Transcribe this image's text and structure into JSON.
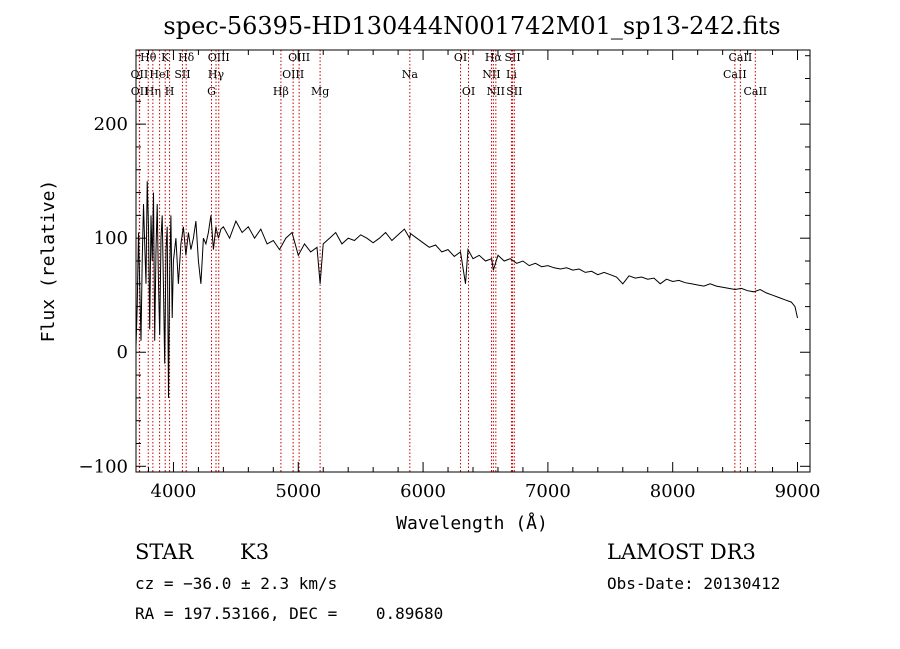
{
  "chart_data": {
    "type": "line",
    "title": "spec-56395-HD130444N001742M01_sp13-242.fits",
    "xlabel": "Wavelength (Å)",
    "ylabel": "Flux (relative)",
    "xlim": [
      3700,
      9100
    ],
    "ylim": [
      -105,
      265
    ],
    "x_ticks": [
      4000,
      5000,
      6000,
      7000,
      8000,
      9000
    ],
    "x_tick_labels": [
      "4000",
      "5000",
      "6000",
      "7000",
      "8000",
      "9000"
    ],
    "y_ticks": [
      -100,
      0,
      100,
      200
    ],
    "y_tick_labels": [
      "−100",
      "0",
      "100",
      "200"
    ],
    "grid": false,
    "series": [
      {
        "name": "flux",
        "color": "#000000",
        "x": [
          3700,
          3710,
          3720,
          3730,
          3740,
          3750,
          3760,
          3770,
          3780,
          3790,
          3800,
          3810,
          3820,
          3830,
          3840,
          3850,
          3860,
          3870,
          3880,
          3890,
          3900,
          3910,
          3920,
          3930,
          3940,
          3950,
          3960,
          3970,
          3980,
          3990,
          4000,
          4020,
          4040,
          4060,
          4080,
          4100,
          4120,
          4140,
          4160,
          4180,
          4200,
          4220,
          4240,
          4260,
          4280,
          4300,
          4320,
          4340,
          4360,
          4380,
          4400,
          4450,
          4500,
          4550,
          4600,
          4650,
          4700,
          4750,
          4800,
          4850,
          4900,
          4950,
          5000,
          5050,
          5100,
          5150,
          5175,
          5200,
          5250,
          5300,
          5350,
          5400,
          5450,
          5500,
          5550,
          5600,
          5650,
          5700,
          5750,
          5800,
          5850,
          5893,
          5900,
          5950,
          6000,
          6050,
          6100,
          6150,
          6200,
          6250,
          6300,
          6340,
          6360,
          6400,
          6450,
          6500,
          6550,
          6563,
          6600,
          6650,
          6700,
          6750,
          6800,
          6850,
          6900,
          6950,
          7000,
          7050,
          7100,
          7150,
          7200,
          7250,
          7300,
          7350,
          7400,
          7450,
          7500,
          7550,
          7600,
          7650,
          7700,
          7750,
          7800,
          7850,
          7900,
          7950,
          8000,
          8050,
          8100,
          8150,
          8200,
          8250,
          8300,
          8350,
          8400,
          8450,
          8500,
          8550,
          8600,
          8650,
          8700,
          8750,
          8800,
          8850,
          8900,
          8950,
          8980,
          9000
        ],
        "values": [
          5,
          40,
          105,
          60,
          10,
          80,
          130,
          95,
          60,
          150,
          110,
          20,
          120,
          80,
          140,
          10,
          90,
          130,
          60,
          15,
          100,
          120,
          55,
          -10,
          90,
          110,
          -40,
          70,
          120,
          30,
          80,
          100,
          60,
          95,
          110,
          85,
          105,
          90,
          100,
          115,
          80,
          60,
          100,
          95,
          105,
          120,
          90,
          110,
          100,
          108,
          110,
          100,
          115,
          105,
          110,
          100,
          108,
          95,
          98,
          90,
          100,
          105,
          85,
          95,
          88,
          92,
          60,
          95,
          100,
          105,
          95,
          100,
          98,
          103,
          100,
          96,
          100,
          105,
          98,
          103,
          108,
          100,
          104,
          100,
          96,
          92,
          94,
          88,
          90,
          84,
          88,
          60,
          90,
          82,
          85,
          80,
          82,
          72,
          85,
          80,
          82,
          78,
          80,
          76,
          78,
          75,
          76,
          74,
          73,
          74,
          72,
          73,
          70,
          71,
          68,
          70,
          68,
          66,
          60,
          67,
          65,
          66,
          64,
          65,
          60,
          64,
          62,
          63,
          61,
          60,
          59,
          58,
          60,
          58,
          57,
          56,
          55,
          56,
          54,
          53,
          55,
          52,
          50,
          48,
          46,
          44,
          40,
          30
        ]
      }
    ],
    "line_annotations": [
      {
        "label": "OII",
        "wavelength": 3727,
        "row": 2
      },
      {
        "label": "OII",
        "wavelength": 3729,
        "row": 3
      },
      {
        "label": "Hθ",
        "wavelength": 3798,
        "row": 1
      },
      {
        "label": "Hη",
        "wavelength": 3835,
        "row": 3
      },
      {
        "label": "HeI",
        "wavelength": 3889,
        "row": 2
      },
      {
        "label": "K",
        "wavelength": 3934,
        "row": 1
      },
      {
        "label": "H",
        "wavelength": 3969,
        "row": 3
      },
      {
        "label": "SII",
        "wavelength": 4072,
        "row": 2
      },
      {
        "label": "Hδ",
        "wavelength": 4102,
        "row": 1
      },
      {
        "label": "G",
        "wavelength": 4305,
        "row": 3
      },
      {
        "label": "Hγ",
        "wavelength": 4341,
        "row": 2
      },
      {
        "label": "OIII",
        "wavelength": 4363,
        "row": 1
      },
      {
        "label": "Hβ",
        "wavelength": 4861,
        "row": 3
      },
      {
        "label": "OIII",
        "wavelength": 4959,
        "row": 2
      },
      {
        "label": "OIII",
        "wavelength": 5007,
        "row": 1
      },
      {
        "label": "Mg",
        "wavelength": 5175,
        "row": 3
      },
      {
        "label": "Na",
        "wavelength": 5894,
        "row": 2
      },
      {
        "label": "OI",
        "wavelength": 6300,
        "row": 1
      },
      {
        "label": "OI",
        "wavelength": 6364,
        "row": 3
      },
      {
        "label": "NII",
        "wavelength": 6548,
        "row": 2
      },
      {
        "label": "Hα",
        "wavelength": 6563,
        "row": 1
      },
      {
        "label": "NII",
        "wavelength": 6583,
        "row": 3
      },
      {
        "label": "SII",
        "wavelength": 6717,
        "row": 1
      },
      {
        "label": "Li",
        "wavelength": 6708,
        "row": 2
      },
      {
        "label": "SII",
        "wavelength": 6731,
        "row": 3
      },
      {
        "label": "CaII",
        "wavelength": 8498,
        "row": 2
      },
      {
        "label": "CaII",
        "wavelength": 8542,
        "row": 1
      },
      {
        "label": "CaII",
        "wavelength": 8662,
        "row": 3
      }
    ],
    "annotation_color": "#cc0000"
  },
  "info": {
    "object_class": "STAR",
    "subclass": "K3",
    "survey": "LAMOST DR3",
    "redshift": "cz = −36.0 ± 2.3 km/s",
    "obs_date": "Obs-Date: 20130412",
    "coords": "RA = 197.53166, DEC =    0.89680"
  }
}
